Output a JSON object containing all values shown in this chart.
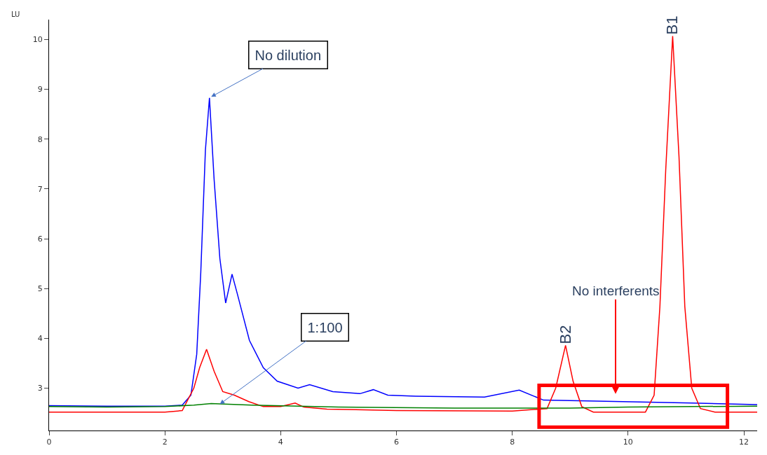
{
  "chart_data": {
    "type": "line",
    "ylabel": "LU",
    "xlim": [
      0,
      12.23
    ],
    "ylim": [
      2.15,
      10.4
    ],
    "xticks": [
      0,
      2,
      4,
      6,
      8,
      10,
      12
    ],
    "yticks": [
      3,
      4,
      5,
      6,
      7,
      8,
      9,
      10
    ],
    "marker": "none",
    "line_style": "solid",
    "series": [
      {
        "color": "#0000ff",
        "x": [
          0,
          1,
          2,
          2.3,
          2.45,
          2.55,
          2.62,
          2.7,
          2.77,
          2.85,
          2.95,
          3.05,
          3.16,
          3.25,
          3.46,
          3.7,
          3.94,
          4.3,
          4.5,
          4.9,
          5.37,
          5.6,
          5.85,
          6.33,
          7.52,
          8.12,
          8.54,
          9.91,
          11.1,
          12.23
        ],
        "values": [
          2.65,
          2.64,
          2.64,
          2.66,
          2.86,
          3.68,
          5.32,
          7.78,
          8.83,
          7.2,
          5.6,
          4.71,
          5.29,
          4.9,
          3.96,
          3.41,
          3.14,
          3.0,
          3.07,
          2.93,
          2.89,
          2.97,
          2.86,
          2.84,
          2.82,
          2.96,
          2.76,
          2.73,
          2.7,
          2.67
        ]
      },
      {
        "color": "#ff0000",
        "x": [
          0,
          1,
          2,
          2.3,
          2.5,
          2.6,
          2.72,
          2.85,
          3.0,
          3.2,
          3.45,
          3.7,
          4.0,
          4.25,
          4.4,
          4.8,
          6.0,
          8.0,
          8.6,
          8.75,
          8.92,
          9.05,
          9.2,
          9.4,
          10.3,
          10.45,
          10.55,
          10.65,
          10.77,
          10.88,
          10.98,
          11.1,
          11.25,
          11.5,
          12.23
        ],
        "values": [
          2.52,
          2.52,
          2.52,
          2.55,
          3.0,
          3.41,
          3.78,
          3.34,
          2.93,
          2.86,
          2.73,
          2.63,
          2.63,
          2.7,
          2.62,
          2.58,
          2.55,
          2.54,
          2.59,
          3.0,
          3.86,
          3.14,
          2.63,
          2.52,
          2.52,
          2.86,
          4.64,
          7.37,
          10.07,
          7.64,
          4.64,
          3.0,
          2.59,
          2.52,
          2.52
        ]
      },
      {
        "color": "#008000",
        "x": [
          0,
          1,
          2,
          2.5,
          2.8,
          3.5,
          5,
          7,
          9,
          10,
          12.23
        ],
        "values": [
          2.63,
          2.62,
          2.63,
          2.66,
          2.69,
          2.66,
          2.62,
          2.6,
          2.6,
          2.62,
          2.64
        ]
      }
    ],
    "annotations": [
      {
        "text": "No dilution",
        "x": 2.8,
        "y": 8.85
      },
      {
        "text": "1:100",
        "x": 2.95,
        "y": 2.68
      },
      {
        "text": "B2",
        "x": 8.92,
        "y": 3.86
      },
      {
        "text": "B1",
        "x": 10.77,
        "y": 10.07
      },
      "No interferents"
    ]
  }
}
